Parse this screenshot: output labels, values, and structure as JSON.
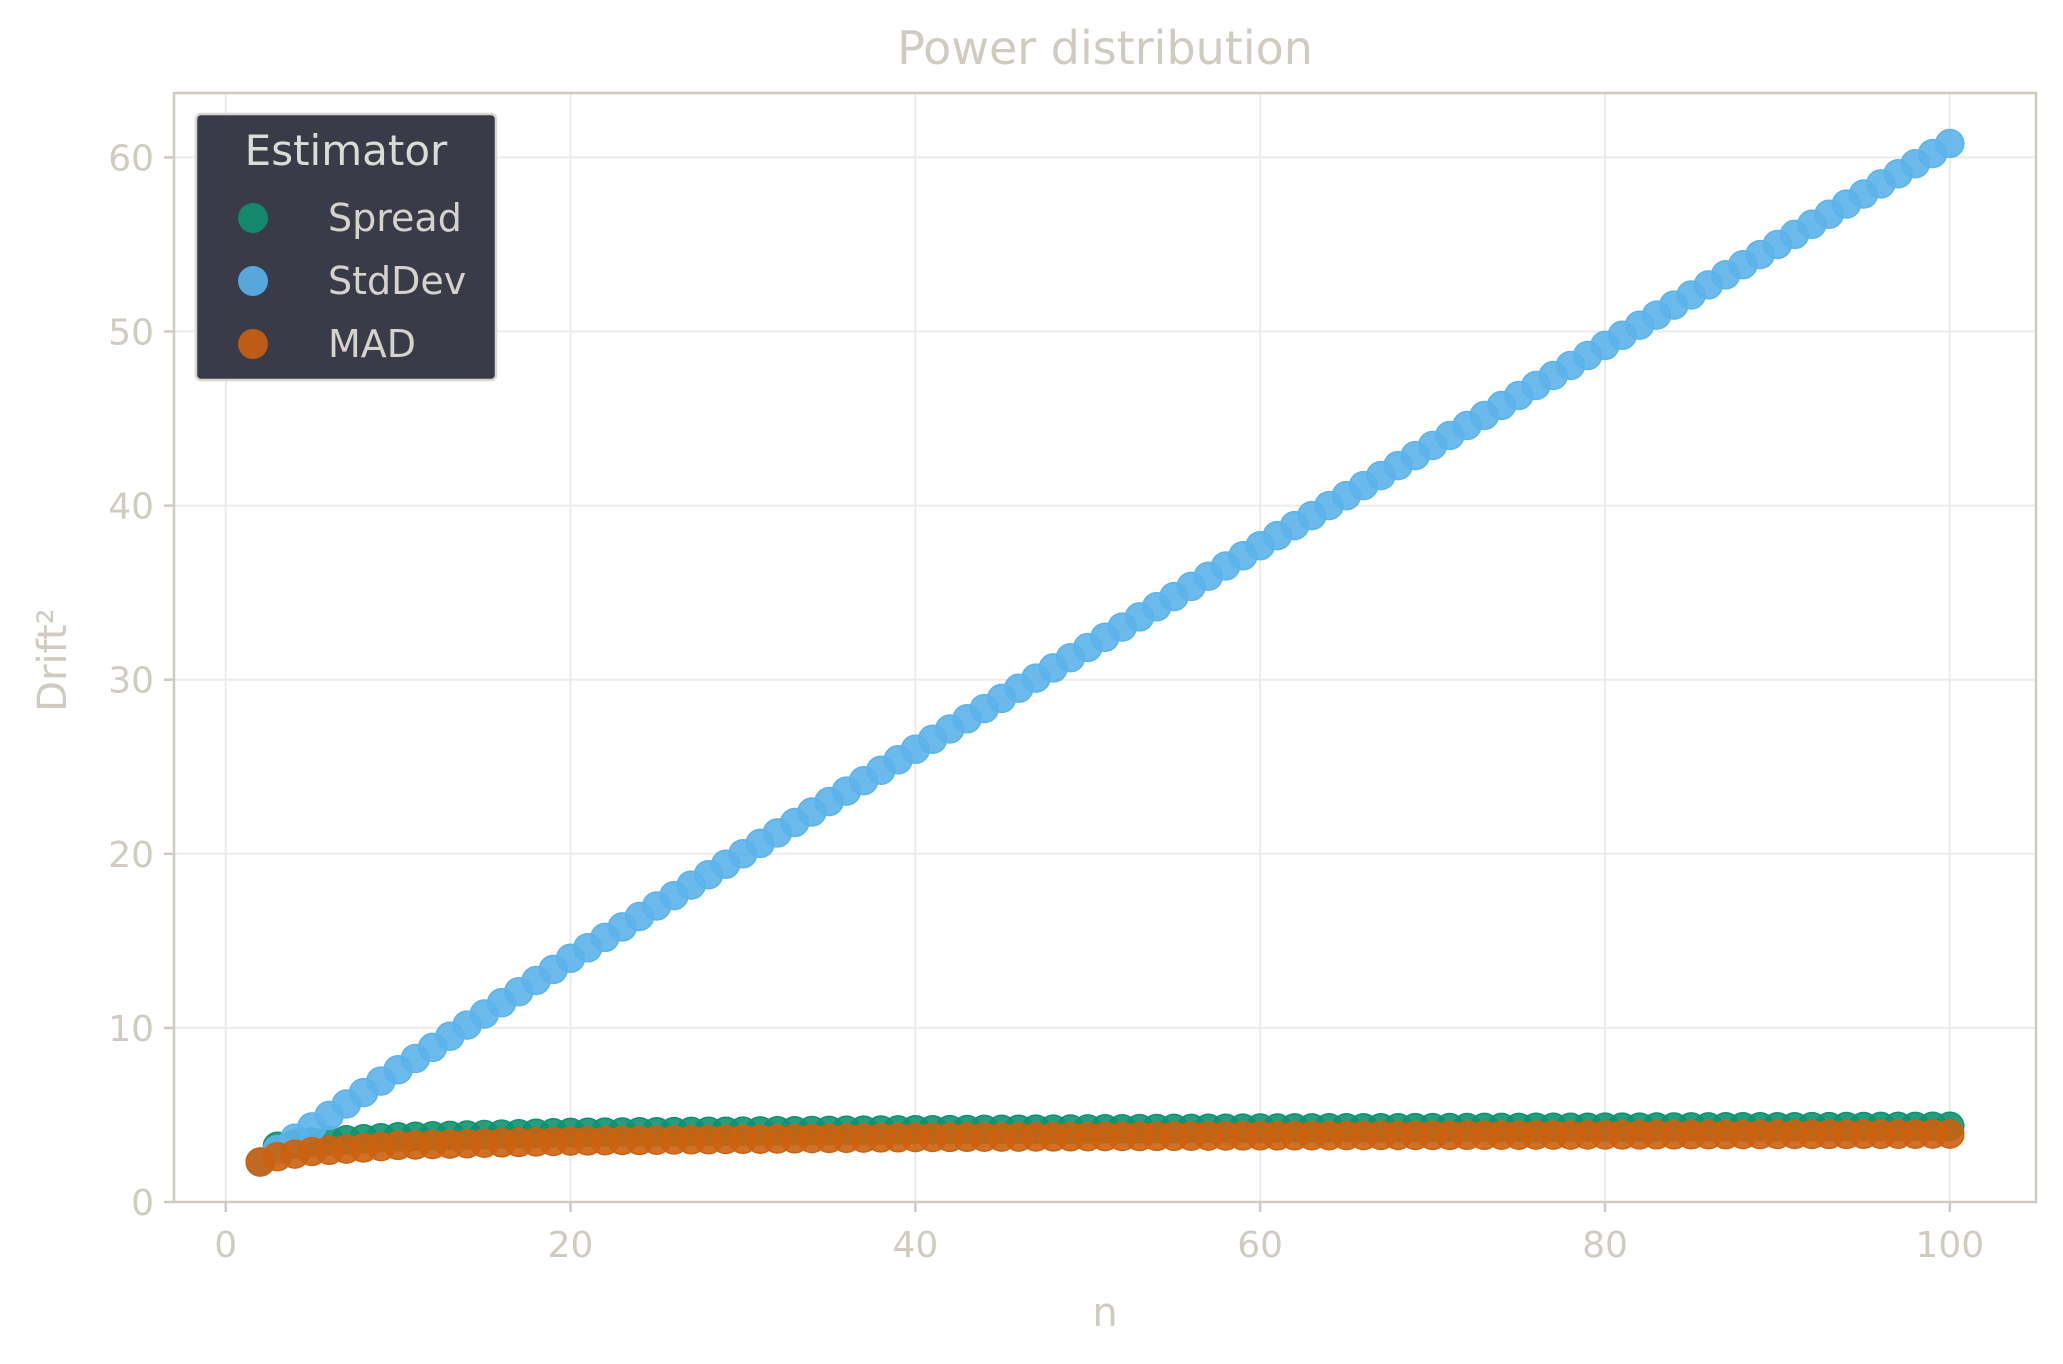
{
  "chart_data": {
    "type": "scatter",
    "title": "Power distribution",
    "xlabel": "n",
    "ylabel": "Drift²",
    "xlim": [
      -3,
      105
    ],
    "ylim": [
      0,
      63.7
    ],
    "x_ticks": [
      0,
      20,
      40,
      60,
      80,
      100
    ],
    "y_ticks": [
      0,
      10,
      20,
      30,
      40,
      50,
      60
    ],
    "x_tick_labels": [
      "0",
      "20",
      "40",
      "60",
      "80",
      "100"
    ],
    "y_tick_labels": [
      "0",
      "10",
      "20",
      "30",
      "40",
      "50",
      "60"
    ],
    "grid": true,
    "legend": {
      "title": "Estimator",
      "position": "top-left",
      "background": "#393b48"
    },
    "n_range": [
      2,
      100
    ],
    "series": [
      {
        "name": "Spread",
        "color": "#0f9170",
        "points_by_n": {
          "2": 2.3,
          "3": 3.2,
          "5": 3.45,
          "10": 3.75,
          "20": 4.0,
          "40": 4.15,
          "60": 4.25,
          "80": 4.3,
          "100": 4.35
        }
      },
      {
        "name": "StdDev",
        "color": "#5cb3ea",
        "points_by_n": {
          "2": 2.3,
          "3": 3.0,
          "10": 7.6,
          "20": 14.0,
          "40": 26.0,
          "60": 37.7,
          "80": 49.2,
          "100": 60.8
        }
      },
      {
        "name": "MAD",
        "color": "#cc620f",
        "points_by_n": {
          "2": 2.3,
          "3": 2.6,
          "5": 2.9,
          "10": 3.25,
          "20": 3.5,
          "40": 3.7,
          "60": 3.8,
          "80": 3.85,
          "100": 3.9
        }
      }
    ]
  }
}
